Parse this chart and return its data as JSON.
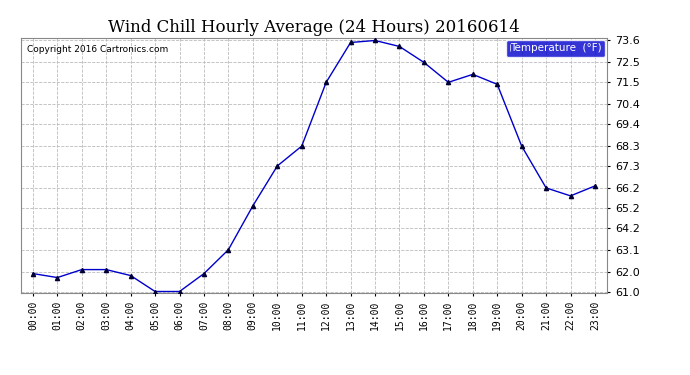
{
  "title": "Wind Chill Hourly Average (24 Hours) 20160614",
  "copyright": "Copyright 2016 Cartronics.com",
  "legend_label": "Temperature  (°F)",
  "x_labels": [
    "00:00",
    "01:00",
    "02:00",
    "03:00",
    "04:00",
    "05:00",
    "06:00",
    "07:00",
    "08:00",
    "09:00",
    "10:00",
    "11:00",
    "12:00",
    "13:00",
    "14:00",
    "15:00",
    "16:00",
    "17:00",
    "18:00",
    "19:00",
    "20:00",
    "21:00",
    "22:00",
    "23:00"
  ],
  "y_values": [
    61.9,
    61.7,
    62.1,
    62.1,
    61.8,
    61.0,
    61.0,
    61.9,
    63.1,
    65.3,
    67.3,
    68.3,
    71.5,
    73.5,
    73.6,
    73.3,
    72.5,
    71.5,
    71.9,
    71.4,
    68.3,
    66.2,
    65.8,
    66.3
  ],
  "ylim_min": 61.0,
  "ylim_max": 73.6,
  "yticks": [
    61.0,
    62.0,
    63.1,
    64.2,
    65.2,
    66.2,
    67.3,
    68.3,
    69.4,
    70.4,
    71.5,
    72.5,
    73.6
  ],
  "line_color": "#0000cc",
  "marker_color": "#000033",
  "background_color": "#ffffff",
  "grid_color": "#bbbbbb",
  "title_fontsize": 12,
  "legend_bg_color": "#0000cc",
  "legend_text_color": "#ffffff",
  "fig_width": 6.9,
  "fig_height": 3.75,
  "dpi": 100
}
